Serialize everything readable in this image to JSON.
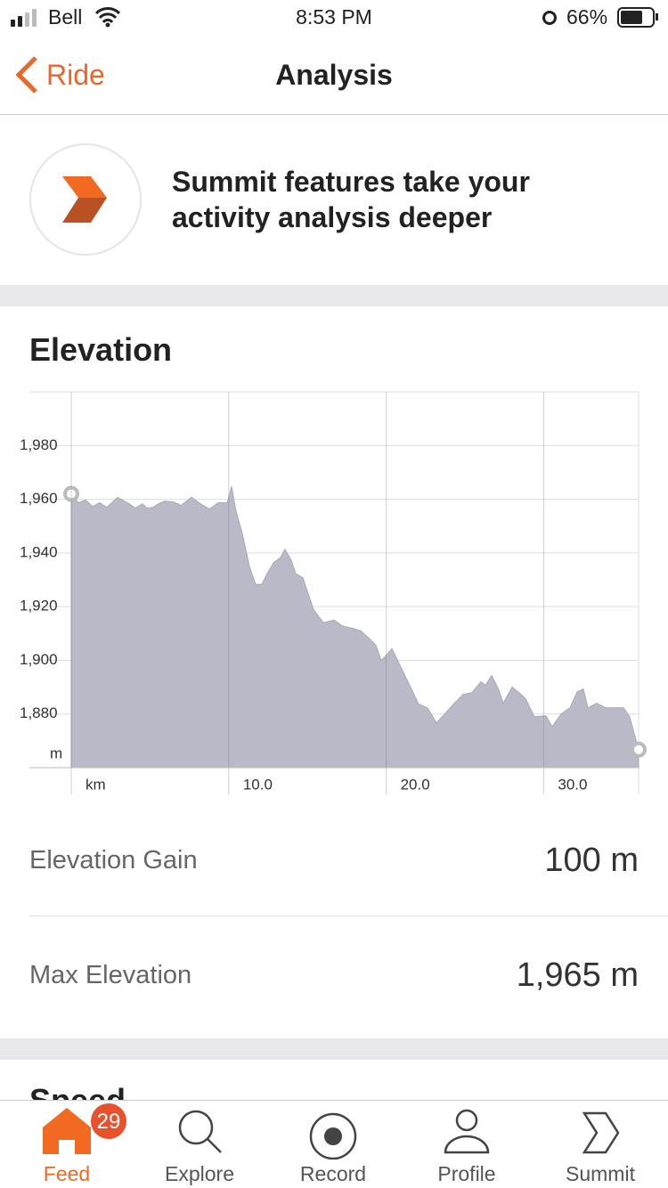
{
  "status_bar": {
    "carrier": "Bell",
    "time": "8:53 PM",
    "battery": "66%"
  },
  "nav": {
    "back": "Ride",
    "title": "Analysis"
  },
  "banner": {
    "lines": [
      "Summit features take your",
      "activity analysis deeper"
    ]
  },
  "chart_data": {
    "type": "area",
    "title": "Elevation",
    "color": "#b9b9c7",
    "line_color": "#a9a9b8",
    "grid": true,
    "y_unit": "m",
    "x": [
      0,
      0.45,
      0.9,
      1.36,
      1.81,
      2.26,
      2.94,
      3.68,
      4.07,
      4.52,
      4.81,
      5.2,
      5.54,
      5.94,
      6.5,
      6.96,
      7.64,
      8.2,
      8.77,
      9.33,
      9.9,
      10.18,
      10.46,
      10.86,
      11.31,
      11.71,
      12.1,
      12.44,
      12.84,
      13.29,
      13.57,
      13.97,
      14.25,
      14.71,
      14.99,
      15.38,
      16.01,
      16.69,
      17.25,
      17.82,
      18.38,
      18.95,
      19.34,
      19.68,
      20.08,
      20.36,
      20.81,
      21.49,
      22.06,
      22.62,
      23.19,
      23.76,
      24.32,
      24.89,
      25.45,
      26.02,
      26.3,
      26.7,
      27.15,
      27.43,
      28.0,
      28.56,
      28.85,
      29.41,
      30.15,
      30.54,
      31.11,
      31.67,
      32.13,
      32.52,
      32.81,
      33.37,
      33.94,
      34.5,
      35.07,
      35.46,
      36.03
    ],
    "values": [
      1962,
      1958.7,
      1959.7,
      1957.3,
      1958.7,
      1957,
      1960.7,
      1958.3,
      1956.7,
      1958.3,
      1956.7,
      1957,
      1958.3,
      1959.3,
      1959,
      1957.7,
      1960.7,
      1958.3,
      1956.3,
      1958.7,
      1958.7,
      1964.7,
      1955.7,
      1947.3,
      1935,
      1928.3,
      1928.3,
      1932.3,
      1936.3,
      1938.3,
      1941.3,
      1937.3,
      1932.3,
      1930.7,
      1925.7,
      1919,
      1914,
      1915,
      1912.7,
      1912,
      1911,
      1908,
      1905.7,
      1900,
      1902.3,
      1904.3,
      1899,
      1890.7,
      1883.7,
      1882.3,
      1876.7,
      1880.3,
      1884,
      1887.3,
      1888,
      1892,
      1890.7,
      1894.3,
      1889,
      1884,
      1890,
      1887.3,
      1885.7,
      1879,
      1879.3,
      1875.3,
      1880,
      1882.3,
      1888.3,
      1889.3,
      1882.3,
      1884,
      1882.3,
      1882.3,
      1882.3,
      1879,
      1866.7
    ],
    "xlim": [
      -2.66,
      36.03
    ],
    "ylim": [
      1860,
      2000
    ],
    "xticks": [
      {
        "value": 0,
        "label": "km"
      },
      {
        "value": 10,
        "label": "10.0"
      },
      {
        "value": 20,
        "label": "20.0"
      },
      {
        "value": 30,
        "label": "30.0"
      }
    ],
    "yticks": [
      {
        "value": 1880,
        "label": "1,880"
      },
      {
        "value": 1900,
        "label": "1,900"
      },
      {
        "value": 1920,
        "label": "1,920"
      },
      {
        "value": 1940,
        "label": "1,940"
      },
      {
        "value": 1960,
        "label": "1,960"
      },
      {
        "value": 1980,
        "label": "1,980"
      }
    ]
  },
  "stats": [
    {
      "label": "Elevation Gain",
      "value": "100 m"
    },
    {
      "label": "Max Elevation",
      "value": "1,965 m"
    }
  ],
  "next_section": "Speed",
  "tab_bar": [
    {
      "label": "Feed",
      "badge": "29"
    },
    {
      "label": "Explore"
    },
    {
      "label": "Record"
    },
    {
      "label": "Profile"
    },
    {
      "label": "Summit"
    }
  ]
}
